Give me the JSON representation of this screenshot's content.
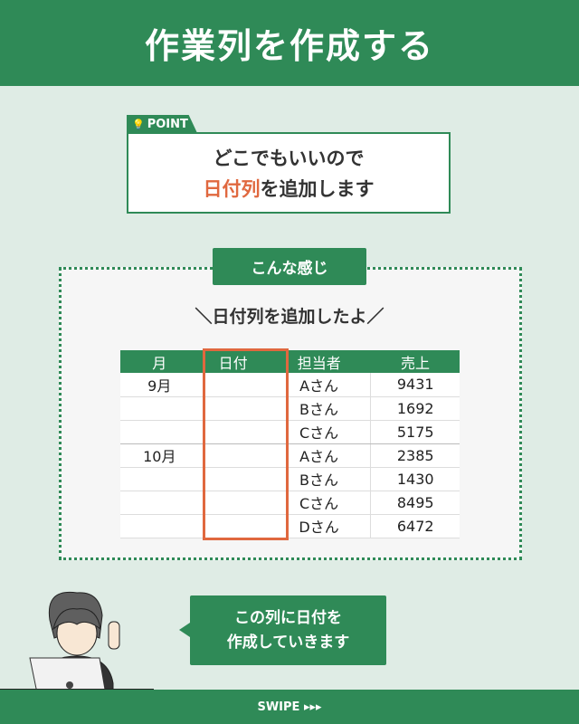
{
  "title": "作業列を作成する",
  "point": {
    "tag": "POINT",
    "line1": "どこでもいいので",
    "highlight": "日付列",
    "line2_rest": "を追加します"
  },
  "example_label": "こんな感じ",
  "subtitle": "＼日付列を追加したよ／",
  "table": {
    "headers": [
      "月",
      "日付",
      "担当者",
      "売上"
    ],
    "rows": [
      [
        "9月",
        "",
        "Aさん",
        "9431"
      ],
      [
        "",
        "",
        "Bさん",
        "1692"
      ],
      [
        "",
        "",
        "Cさん",
        "5175"
      ],
      [
        "10月",
        "",
        "Aさん",
        "2385"
      ],
      [
        "",
        "",
        "Bさん",
        "1430"
      ],
      [
        "",
        "",
        "Cさん",
        "8495"
      ],
      [
        "",
        "",
        "Dさん",
        "6472"
      ]
    ]
  },
  "bubble": {
    "line1": "この列に日付を",
    "line2": "作成していきます"
  },
  "footer": "SWIPE ▸▸▸",
  "colors": {
    "green": "#2f8a57",
    "accent": "#e0683f",
    "background": "#dfece5"
  }
}
